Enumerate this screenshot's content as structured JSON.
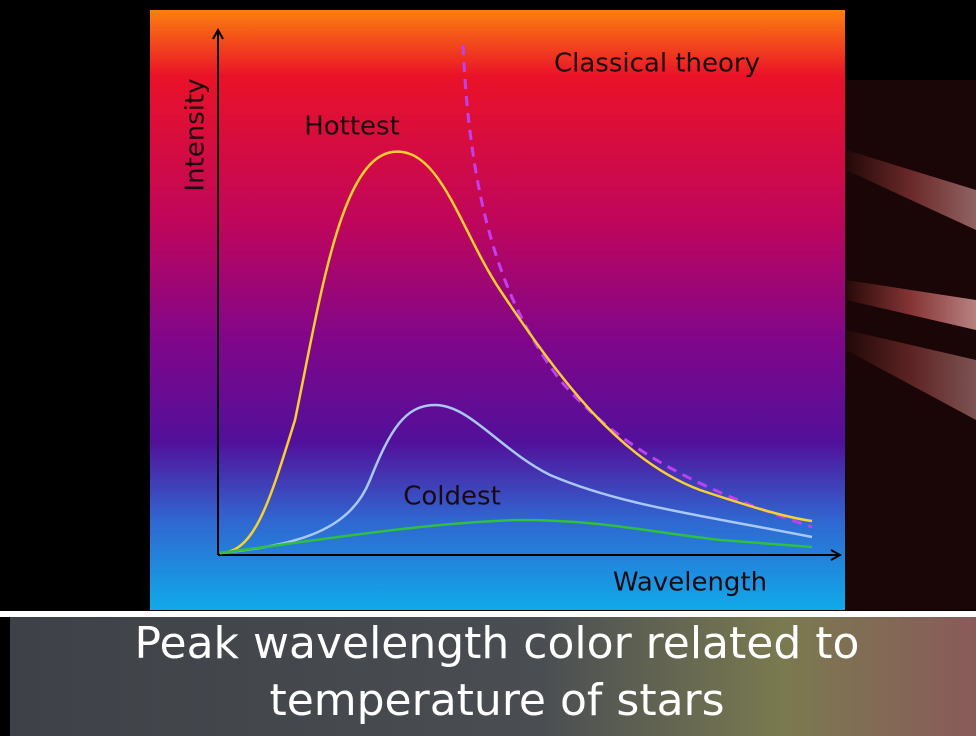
{
  "diagram": {
    "y_axis_label": "Intensity",
    "x_axis_label": "Wavelength",
    "hottest_label": "Hottest",
    "coldest_label": "Coldest",
    "classical_label": "Classical theory"
  },
  "caption": {
    "lines": [
      "Peak wavelength color related to",
      "temperature of stars"
    ]
  }
}
